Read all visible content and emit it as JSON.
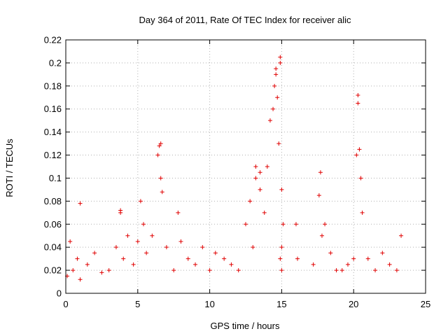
{
  "chart_data": {
    "type": "scatter",
    "title": "Day 364 of 2011, Rate Of TEC Index for receiver alic",
    "xlabel": "GPS time / hours",
    "ylabel": "ROTI / TECUs",
    "xlim": [
      0,
      25
    ],
    "ylim": [
      0,
      0.22
    ],
    "xticks": [
      0,
      5,
      10,
      15,
      20,
      25
    ],
    "xtick_labels": [
      "0",
      "5",
      "10",
      "15",
      "20",
      "25"
    ],
    "yticks": [
      0,
      0.02,
      0.04,
      0.06,
      0.08,
      0.1,
      0.12,
      0.14,
      0.16,
      0.18,
      0.2,
      0.22
    ],
    "ytick_labels": [
      "0",
      "0.02",
      "0.04",
      "0.06",
      "0.08",
      "0.1",
      "0.12",
      "0.14",
      "0.16",
      "0.18",
      "0.2",
      "0.22"
    ],
    "grid": true,
    "marker": "+",
    "series": [
      {
        "name": "ROTI",
        "color": "#e00000",
        "x": [
          0.1,
          0.3,
          0.5,
          0.8,
          1.0,
          1.5,
          2.0,
          2.5,
          3.0,
          3.5,
          3.8,
          4.0,
          4.3,
          4.7,
          5.0,
          5.2,
          5.4,
          5.6,
          6.0,
          6.4,
          6.5,
          6.6,
          6.7,
          7.0,
          7.5,
          7.8,
          8.0,
          8.5,
          9.0,
          9.5,
          10.0,
          10.4,
          11.0,
          11.5,
          12.0,
          12.5,
          12.8,
          13.0,
          13.2,
          13.5,
          13.8,
          14.0,
          14.2,
          14.4,
          14.5,
          14.6,
          14.7,
          14.8,
          14.9,
          15.0,
          15.1,
          15.0,
          14.9,
          15.0,
          16.0,
          16.1,
          17.2,
          17.6,
          17.8,
          18.0,
          18.4,
          18.8,
          19.2,
          19.6,
          20.0,
          20.2,
          20.3,
          20.4,
          20.5,
          20.6,
          21.0,
          21.5,
          22.0,
          22.5,
          23.0,
          23.3,
          1.0,
          3.8,
          6.6,
          13.2,
          13.5,
          14.6,
          14.9,
          17.7,
          20.3
        ],
        "y": [
          0.015,
          0.045,
          0.02,
          0.03,
          0.012,
          0.025,
          0.035,
          0.018,
          0.02,
          0.04,
          0.07,
          0.03,
          0.05,
          0.025,
          0.045,
          0.08,
          0.06,
          0.035,
          0.05,
          0.12,
          0.128,
          0.1,
          0.088,
          0.04,
          0.02,
          0.07,
          0.045,
          0.03,
          0.025,
          0.04,
          0.02,
          0.035,
          0.03,
          0.025,
          0.02,
          0.06,
          0.08,
          0.04,
          0.1,
          0.09,
          0.07,
          0.11,
          0.15,
          0.16,
          0.18,
          0.19,
          0.17,
          0.13,
          0.2,
          0.09,
          0.06,
          0.04,
          0.03,
          0.02,
          0.06,
          0.03,
          0.025,
          0.085,
          0.05,
          0.06,
          0.035,
          0.02,
          0.02,
          0.025,
          0.03,
          0.12,
          0.165,
          0.125,
          0.1,
          0.07,
          0.03,
          0.02,
          0.035,
          0.025,
          0.02,
          0.05,
          0.078,
          0.072,
          0.13,
          0.11,
          0.105,
          0.195,
          0.205,
          0.105,
          0.172
        ]
      }
    ]
  }
}
